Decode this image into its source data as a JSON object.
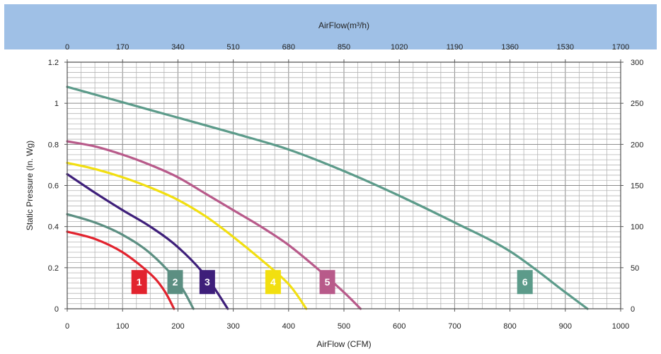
{
  "chart_data": {
    "type": "line",
    "xlabel": "AirFlow (CFM)",
    "ylabel": "Static Pressure (In. Wg)",
    "x2label": "AirFlow(m³/h)",
    "xlim": [
      0,
      1000
    ],
    "ylim": [
      0,
      1.2
    ],
    "x2lim": [
      0,
      1700
    ],
    "y2lim": [
      0,
      300
    ],
    "x_ticks": [
      "0",
      "100",
      "200",
      "300",
      "400",
      "500",
      "600",
      "700",
      "800",
      "900",
      "1000"
    ],
    "y_ticks": [
      "0",
      "0.2",
      "0.4",
      "0.6",
      "0.8",
      "1",
      "1.2"
    ],
    "x2_ticks": [
      "0",
      "170",
      "340",
      "510",
      "680",
      "850",
      "1020",
      "1190",
      "1360",
      "1530",
      "1700"
    ],
    "y2_ticks": [
      "0",
      "50",
      "100",
      "150",
      "200",
      "250",
      "300"
    ],
    "grid": true,
    "series": [
      {
        "name": "1",
        "color": "#e2232e",
        "label_at": [
          130,
          0.13
        ],
        "points": [
          [
            0,
            0.375
          ],
          [
            50,
            0.34
          ],
          [
            100,
            0.275
          ],
          [
            150,
            0.17
          ],
          [
            175,
            0.09
          ],
          [
            193,
            0
          ]
        ]
      },
      {
        "name": "2",
        "color": "#5c8f82",
        "label_at": [
          195,
          0.13
        ],
        "points": [
          [
            0,
            0.46
          ],
          [
            50,
            0.42
          ],
          [
            100,
            0.36
          ],
          [
            150,
            0.27
          ],
          [
            200,
            0.13
          ],
          [
            228,
            0
          ]
        ]
      },
      {
        "name": "3",
        "color": "#3e1f7a",
        "label_at": [
          253,
          0.13
        ],
        "points": [
          [
            0,
            0.655
          ],
          [
            50,
            0.565
          ],
          [
            100,
            0.48
          ],
          [
            150,
            0.4
          ],
          [
            200,
            0.3
          ],
          [
            250,
            0.16
          ],
          [
            290,
            0
          ]
        ]
      },
      {
        "name": "4",
        "color": "#f2df10",
        "label_at": [
          372,
          0.13
        ],
        "points": [
          [
            0,
            0.71
          ],
          [
            50,
            0.68
          ],
          [
            100,
            0.64
          ],
          [
            150,
            0.59
          ],
          [
            200,
            0.53
          ],
          [
            250,
            0.45
          ],
          [
            300,
            0.35
          ],
          [
            350,
            0.24
          ],
          [
            400,
            0.12
          ],
          [
            432,
            0
          ]
        ]
      },
      {
        "name": "5",
        "color": "#b85a8a",
        "label_at": [
          470,
          0.13
        ],
        "points": [
          [
            0,
            0.815
          ],
          [
            50,
            0.79
          ],
          [
            100,
            0.75
          ],
          [
            150,
            0.7
          ],
          [
            200,
            0.64
          ],
          [
            250,
            0.56
          ],
          [
            300,
            0.48
          ],
          [
            350,
            0.4
          ],
          [
            400,
            0.31
          ],
          [
            450,
            0.2
          ],
          [
            500,
            0.08
          ],
          [
            530,
            0
          ]
        ]
      },
      {
        "name": "6",
        "color": "#5c9b8a",
        "label_at": [
          827,
          0.13
        ],
        "points": [
          [
            0,
            1.08
          ],
          [
            100,
            1.005
          ],
          [
            200,
            0.93
          ],
          [
            300,
            0.855
          ],
          [
            400,
            0.775
          ],
          [
            500,
            0.67
          ],
          [
            600,
            0.55
          ],
          [
            700,
            0.42
          ],
          [
            800,
            0.28
          ],
          [
            900,
            0.08
          ],
          [
            940,
            0
          ]
        ]
      }
    ]
  }
}
